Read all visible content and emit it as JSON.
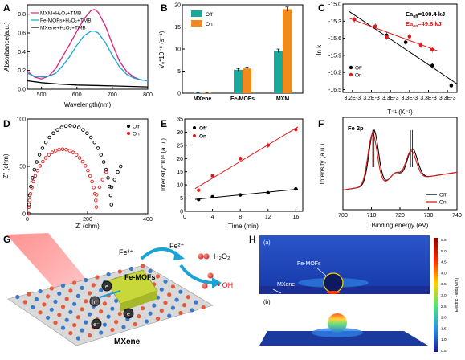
{
  "panels": {
    "A": {
      "label": "A",
      "type": "line",
      "xlabel": "Wavelength(nm)",
      "ylabel": "Absorbance(a.u.)",
      "xlim": [
        460,
        800
      ],
      "ylim": [
        0,
        0.9
      ],
      "xticks": [
        500,
        600,
        700,
        800
      ],
      "yticks": [
        0.0,
        0.2,
        0.4,
        0.6,
        0.8
      ],
      "series": [
        {
          "name": "MXM+H₂O₂+TMB",
          "color": "#e0207a",
          "x": [
            460,
            480,
            500,
            520,
            540,
            560,
            580,
            600,
            620,
            640,
            650,
            660,
            680,
            700,
            720,
            740,
            760,
            780,
            800
          ],
          "y": [
            0.19,
            0.13,
            0.11,
            0.14,
            0.22,
            0.35,
            0.48,
            0.62,
            0.75,
            0.84,
            0.85,
            0.82,
            0.68,
            0.48,
            0.3,
            0.19,
            0.13,
            0.1,
            0.09
          ]
        },
        {
          "name": "Fe-MOFs+H₂O₂+TMB",
          "color": "#1aa3d6",
          "x": [
            460,
            480,
            500,
            520,
            540,
            560,
            580,
            600,
            620,
            640,
            650,
            660,
            680,
            700,
            720,
            740,
            760,
            780,
            800
          ],
          "y": [
            0.17,
            0.14,
            0.13,
            0.14,
            0.17,
            0.25,
            0.35,
            0.47,
            0.57,
            0.62,
            0.62,
            0.6,
            0.5,
            0.36,
            0.24,
            0.16,
            0.12,
            0.1,
            0.09
          ]
        },
        {
          "name": "MXene+H₂O₂+TMB",
          "color": "#000000",
          "x": [
            460,
            500,
            550,
            600,
            650,
            700,
            750,
            800
          ],
          "y": [
            0.09,
            0.07,
            0.055,
            0.045,
            0.04,
            0.035,
            0.03,
            0.025
          ]
        }
      ]
    },
    "B": {
      "label": "B",
      "type": "bar",
      "ylabel": "V₀*10⁻⁸ (s⁻¹)",
      "ylim": [
        0,
        20
      ],
      "yticks": [
        0,
        5,
        10,
        15,
        20
      ],
      "categories": [
        "MXene",
        "Fe-MOFs",
        "MXM"
      ],
      "series": [
        {
          "name": "Off",
          "color": "#1aa89a",
          "values": [
            0.1,
            5.3,
            9.6
          ],
          "errors": [
            0.05,
            0.3,
            0.4
          ]
        },
        {
          "name": "On",
          "color": "#f08a1c",
          "values": [
            0.1,
            5.6,
            19.0
          ],
          "errors": [
            0.05,
            0.3,
            0.5
          ]
        }
      ]
    },
    "C": {
      "label": "C",
      "type": "scatter",
      "xlabel": "T⁻¹ (K⁻¹)",
      "ylabel": "ln k",
      "ylim": [
        -16.55,
        -15.0
      ],
      "yticks": [
        -15.0,
        -15.3,
        -15.6,
        -15.9,
        -16.2,
        -16.5
      ],
      "xlim": [
        0,
        6
      ],
      "xtick_labels": [
        "3.2E-3",
        "3.2E-3",
        "3.3E-3",
        "3.3E-3",
        "3.3E-3",
        "3.3E-3"
      ],
      "ann1": "Ea",
      "ann1_sub": "off",
      "ann1_val": "=100.4 kJ",
      "ann2": "Ea",
      "ann2_sub": "on",
      "ann2_val": "=49.8 kJ",
      "series": [
        {
          "name": "Off",
          "color": "#000000",
          "x": [
            0.6,
            2.3,
            3.3,
            4.7,
            5.7
          ],
          "y": [
            -15.27,
            -15.55,
            -15.67,
            -16.08,
            -16.43
          ]
        },
        {
          "name": "On",
          "color": "#e01a1a",
          "x": [
            0.6,
            1.7,
            2.3,
            3.5,
            4.1,
            4.7
          ],
          "y": [
            -15.27,
            -15.39,
            -15.58,
            -15.57,
            -15.72,
            -15.8
          ]
        }
      ]
    },
    "D": {
      "label": "D",
      "type": "scatter",
      "xlabel": "Z' (ohm)",
      "ylabel": "Z'' (ohm)",
      "xlim": [
        0,
        400
      ],
      "ylim": [
        0,
        100
      ],
      "xticks": [
        0,
        200,
        400
      ],
      "yticks": [
        0,
        50,
        100
      ],
      "series": [
        {
          "name": "Off",
          "color": "#000000"
        },
        {
          "name": "On",
          "color": "#e01a1a"
        }
      ]
    },
    "E": {
      "label": "E",
      "type": "scatter",
      "xlabel": "Time (min)",
      "ylabel": "Intensity*10⁴ (a.u.)",
      "xlim": [
        0,
        17
      ],
      "ylim": [
        0,
        35
      ],
      "xticks": [
        0,
        4,
        8,
        12,
        16
      ],
      "yticks": [
        0,
        5,
        10,
        15,
        20,
        25,
        30,
        35
      ],
      "series": [
        {
          "name": "Off",
          "color": "#000000",
          "x": [
            2,
            4,
            8,
            12,
            16
          ],
          "y": [
            4.5,
            5.5,
            6.2,
            7.0,
            8.5
          ],
          "errors": [
            0.3,
            0.3,
            0.3,
            0.3,
            0.5
          ]
        },
        {
          "name": "On",
          "color": "#e01a1a",
          "x": [
            2,
            4,
            8,
            12,
            16
          ],
          "y": [
            8.0,
            13.5,
            20.0,
            25.0,
            31.0
          ],
          "errors": [
            0.5,
            0.6,
            0.8,
            1.0,
            1.2
          ]
        }
      ]
    },
    "F": {
      "label": "F",
      "type": "line",
      "xlabel": "Binding energy (eV)",
      "ylabel": "Intensity (a.u.)",
      "xlim": [
        700,
        740
      ],
      "xticks": [
        700,
        710,
        720,
        730,
        740
      ],
      "annotation": "Fe 2p",
      "series": [
        {
          "name": "Off",
          "color": "#000000"
        },
        {
          "name": "On",
          "color": "#e01a1a"
        }
      ]
    },
    "G": {
      "label": "G",
      "fe3": "Fe³⁺",
      "fe2": "Fe²⁺",
      "h2o2": "H₂O₂",
      "oh": "• OH",
      "hplus": "h⁺",
      "electron": "e⁻",
      "electron2": "e",
      "femofs": "Fe-MOFs",
      "mxene": "MXene"
    },
    "H": {
      "label": "H",
      "sub_a": "(a)",
      "sub_b": "(b)",
      "femofs": "Fe-MOFs",
      "mxene": "MXene",
      "colorbar_label": "Electric Field (V/m)",
      "colorbar_ticks": [
        "5.5",
        "5.0",
        "4.5",
        "4.0",
        "3.5",
        "3.0",
        "2.5",
        "2.0",
        "1.5",
        "1.0",
        "0.5"
      ]
    }
  }
}
